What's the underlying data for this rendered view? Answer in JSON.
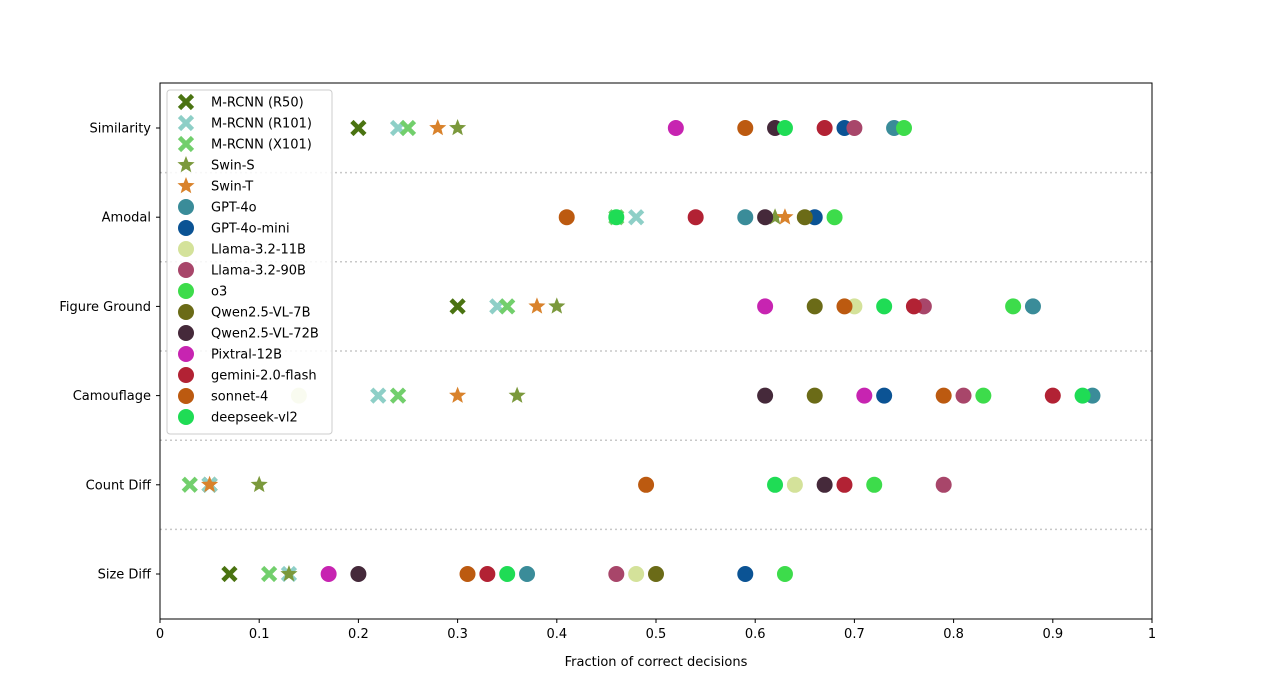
{
  "chart_data": {
    "type": "scatter",
    "title": "",
    "xlabel": "Fraction of correct decisions",
    "ylabel": "",
    "xlim": [
      0,
      1
    ],
    "xticks": [
      "0",
      "0.1",
      "0.2",
      "0.3",
      "0.4",
      "0.5",
      "0.6",
      "0.7",
      "0.8",
      "0.9",
      "1"
    ],
    "categories": [
      "Similarity",
      "Amodal",
      "Figure Ground",
      "Camouflage",
      "Count Diff",
      "Size Diff"
    ],
    "grid": "dotted horizontal separators between categories",
    "legend_position": "top-left",
    "series": [
      {
        "name": "M-RCNN (R50)",
        "marker": "x",
        "color": "#4a7311",
        "values": [
          0.2,
          null,
          0.3,
          null,
          0.05,
          0.07
        ]
      },
      {
        "name": "M-RCNN (R101)",
        "marker": "x",
        "color": "#8ecfc7",
        "values": [
          0.24,
          0.48,
          0.34,
          0.22,
          0.05,
          0.13
        ]
      },
      {
        "name": "M-RCNN (X101)",
        "marker": "x",
        "color": "#72cf6c",
        "values": [
          0.25,
          0.46,
          0.35,
          0.24,
          0.03,
          0.11
        ]
      },
      {
        "name": "Swin-S",
        "marker": "star",
        "color": "#7b993c",
        "values": [
          0.3,
          0.62,
          0.4,
          0.36,
          0.1,
          0.13
        ]
      },
      {
        "name": "Swin-T",
        "marker": "star",
        "color": "#d9822b",
        "values": [
          0.28,
          0.63,
          0.38,
          0.3,
          0.05,
          null
        ]
      },
      {
        "name": "GPT-4o",
        "marker": "circle",
        "color": "#3a8c99",
        "values": [
          0.74,
          0.59,
          0.88,
          0.94,
          null,
          0.37
        ]
      },
      {
        "name": "GPT-4o-mini",
        "marker": "circle",
        "color": "#0b5394",
        "values": [
          0.69,
          0.66,
          null,
          0.73,
          null,
          0.59
        ]
      },
      {
        "name": "Llama-3.2-11B",
        "marker": "circle",
        "color": "#d4e29a",
        "values": [
          null,
          null,
          0.7,
          0.14,
          0.64,
          0.48
        ]
      },
      {
        "name": "Llama-3.2-90B",
        "marker": "circle",
        "color": "#a8466a",
        "values": [
          0.7,
          null,
          0.77,
          0.81,
          0.79,
          0.46
        ]
      },
      {
        "name": "o3",
        "marker": "circle",
        "color": "#3ddc4b",
        "values": [
          0.75,
          0.68,
          0.86,
          0.83,
          0.72,
          0.63
        ]
      },
      {
        "name": "Qwen2.5-VL-7B",
        "marker": "circle",
        "color": "#6b6b17",
        "values": [
          null,
          0.65,
          0.66,
          0.66,
          null,
          0.5
        ]
      },
      {
        "name": "Qwen2.5-VL-72B",
        "marker": "circle",
        "color": "#45293a",
        "values": [
          0.62,
          0.61,
          null,
          0.61,
          0.67,
          0.2
        ]
      },
      {
        "name": "Pixtral-12B",
        "marker": "circle",
        "color": "#c724b1",
        "values": [
          0.52,
          null,
          0.61,
          0.71,
          null,
          0.17
        ]
      },
      {
        "name": "gemini-2.0-flash",
        "marker": "circle",
        "color": "#b22234",
        "values": [
          0.67,
          0.54,
          0.76,
          0.9,
          0.69,
          0.33
        ]
      },
      {
        "name": "sonnet-4",
        "marker": "circle",
        "color": "#bc5a10",
        "values": [
          0.59,
          0.41,
          0.69,
          0.79,
          0.49,
          0.31
        ]
      },
      {
        "name": "deepseek-vl2",
        "marker": "circle",
        "color": "#1fdc55",
        "values": [
          0.63,
          0.46,
          0.73,
          0.93,
          0.62,
          0.35
        ]
      }
    ]
  }
}
